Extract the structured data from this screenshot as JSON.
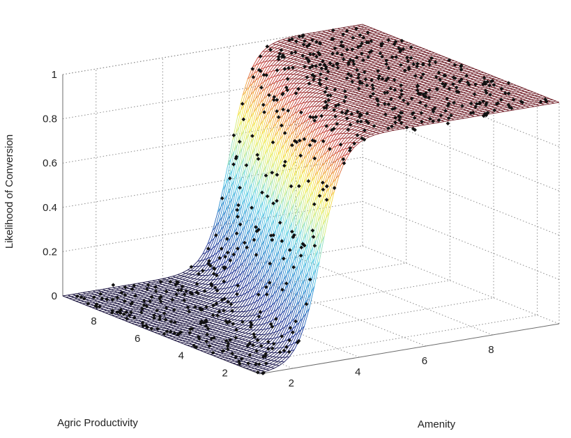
{
  "chart_data": {
    "type": "surface",
    "title": "",
    "xlabel": "Agric Productivity",
    "ylabel": "Amenity",
    "zlabel": "Likelihood of Conversion",
    "x_ticks": [
      "2",
      "4",
      "6",
      "8"
    ],
    "y_ticks": [
      "2",
      "4",
      "6",
      "8"
    ],
    "z_ticks": [
      "0",
      "0.2",
      "0.4",
      "0.6",
      "0.8",
      "1"
    ],
    "xlim": [
      1,
      10
    ],
    "ylim": [
      1,
      10
    ],
    "zlim": [
      0,
      1
    ],
    "grid": true,
    "colormap": "jet",
    "marker_color": "#111111",
    "surface_model": {
      "form": "logistic",
      "description": "",
      "steepness": 3,
      "amenity_coef": 1.0,
      "agric_coef": 0.35,
      "intercept": -5.5
    },
    "scatter_points_count": 700
  }
}
